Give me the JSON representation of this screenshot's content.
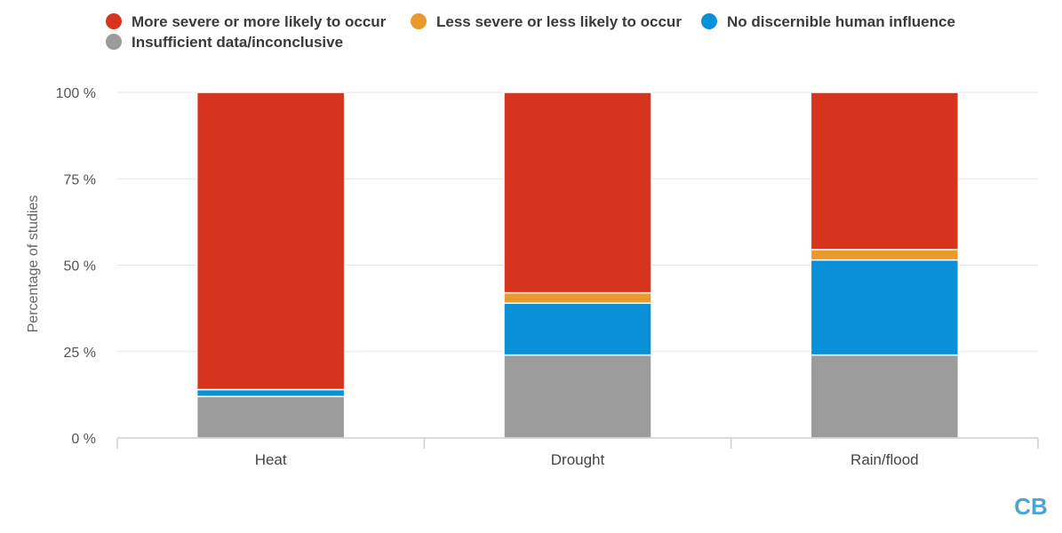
{
  "chart_data": {
    "type": "bar",
    "stacked": true,
    "title": "",
    "xlabel": "",
    "ylabel": "Percentage of studies",
    "ylim": [
      0,
      100
    ],
    "yticks": [
      0,
      25,
      50,
      75,
      100
    ],
    "ytick_labels": [
      "0 %",
      "25 %",
      "50 %",
      "75 %",
      "100 %"
    ],
    "grid": true,
    "legend_position": "top-left",
    "categories": [
      "Heat",
      "Drought",
      "Rain/flood"
    ],
    "series": [
      {
        "name": "Insufficient data/inconclusive",
        "color": "#9b9b9b",
        "values": [
          12,
          24,
          24
        ]
      },
      {
        "name": "No discernible human influence",
        "color": "#0a90d6",
        "values": [
          2,
          15,
          27.5
        ]
      },
      {
        "name": "Less severe or less likely to occur",
        "color": "#ea9a2c",
        "values": [
          0,
          3,
          3
        ]
      },
      {
        "name": "More severe or more likely to occur",
        "color": "#d6341d",
        "values": [
          86,
          58,
          45.5
        ]
      }
    ],
    "legend_order": [
      3,
      2,
      1,
      0
    ]
  },
  "logo": {
    "text": "CB"
  }
}
